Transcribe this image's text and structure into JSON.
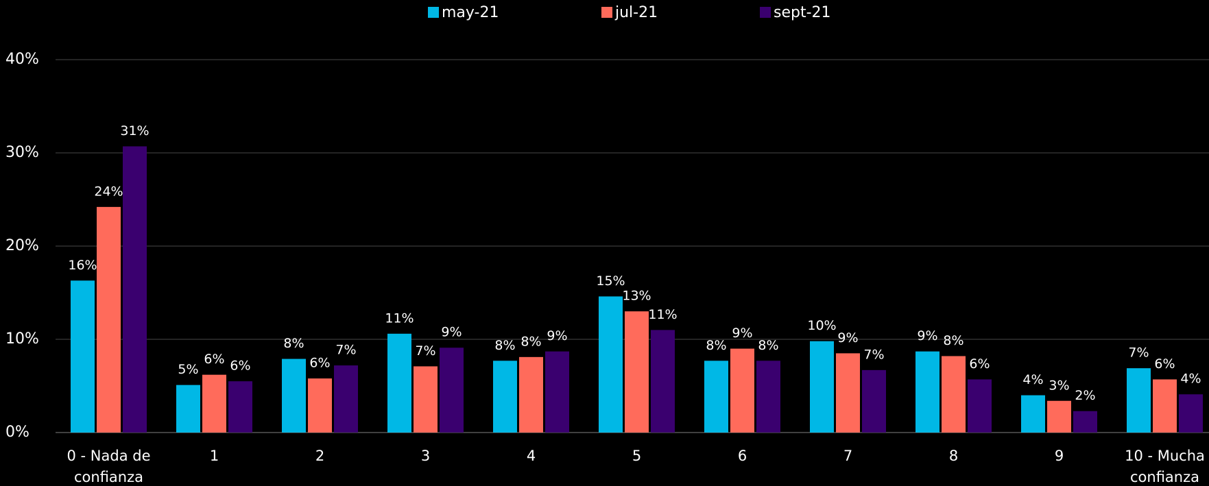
{
  "chart_data": {
    "type": "bar",
    "categories": [
      "0 - Nada de confianza",
      "1",
      "2",
      "3",
      "4",
      "5",
      "6",
      "7",
      "8",
      "9",
      "10 - Mucha confianza"
    ],
    "series": [
      {
        "name": "may-21",
        "color": "#00b8e6",
        "values": [
          16.3,
          5.1,
          7.9,
          10.6,
          7.7,
          14.6,
          7.7,
          9.8,
          8.7,
          4.0,
          6.9
        ],
        "value_labels": [
          "16%",
          "5%",
          "8%",
          "11%",
          "8%",
          "15%",
          "8%",
          "10%",
          "9%",
          "4%",
          "7%"
        ]
      },
      {
        "name": "jul-21",
        "color": "#ff6b5b",
        "values": [
          24.2,
          6.2,
          5.8,
          7.1,
          8.1,
          13.0,
          9.0,
          8.5,
          8.2,
          3.4,
          5.7
        ],
        "value_labels": [
          "24%",
          "6%",
          "6%",
          "7%",
          "8%",
          "13%",
          "9%",
          "9%",
          "8%",
          "3%",
          "6%"
        ]
      },
      {
        "name": "sept-21",
        "color": "#3a006f",
        "values": [
          30.7,
          5.5,
          7.2,
          9.1,
          8.7,
          11.0,
          7.7,
          6.7,
          5.7,
          2.3,
          4.1
        ],
        "value_labels": [
          "31%",
          "6%",
          "7%",
          "9%",
          "9%",
          "11%",
          "8%",
          "7%",
          "6%",
          "2%",
          "4%"
        ]
      }
    ],
    "ylim": [
      0,
      40
    ],
    "yticks": [
      {
        "value": 0,
        "label": "0%"
      },
      {
        "value": 10,
        "label": "10%"
      },
      {
        "value": 20,
        "label": "20%"
      },
      {
        "value": 30,
        "label": "30%"
      },
      {
        "value": 40,
        "label": "40%"
      }
    ],
    "grid": true,
    "legend": "top"
  }
}
